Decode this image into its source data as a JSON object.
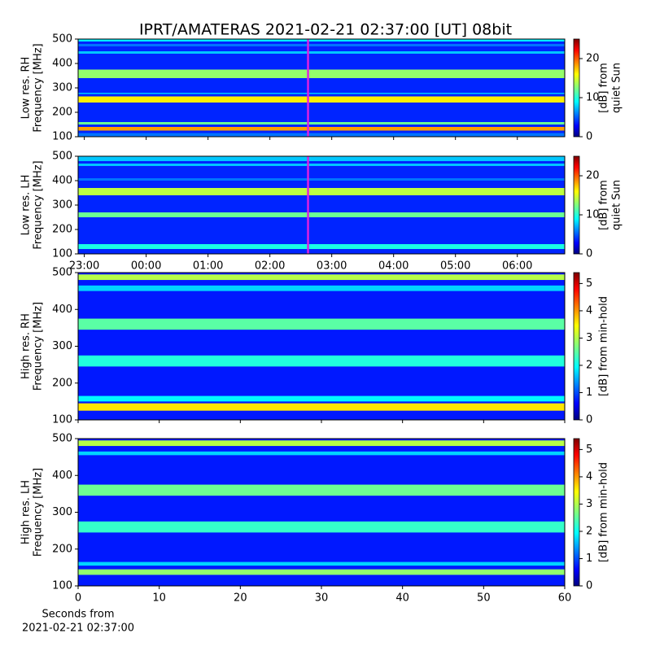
{
  "title": "IPRT/AMATERAS 2021-02-21 02:37:00 [UT]   08bit",
  "chart_data": [
    {
      "type": "heatmap",
      "ylabel": [
        "Low res. RH",
        "Frequency [MHz]"
      ],
      "xscale": "time",
      "xlim": [
        "22:54",
        "06:46"
      ],
      "xticks": [
        "23:00",
        "00:00",
        "01:00",
        "02:00",
        "03:00",
        "04:00",
        "05:00",
        "06:00"
      ],
      "show_xticklabels": false,
      "ylim": [
        100,
        500
      ],
      "yticks": [
        100,
        200,
        300,
        400,
        500
      ],
      "colormap": "jet",
      "clim": [
        0,
        25
      ],
      "cticks": [
        0,
        10,
        20
      ],
      "clabel": [
        "[dB] from",
        "quiet Sun"
      ],
      "marker_time": "02:37",
      "marker_color": "#e020e0",
      "background": 4,
      "bands": [
        {
          "from": 100,
          "to": 115,
          "value": 6
        },
        {
          "from": 125,
          "to": 140,
          "value": 18
        },
        {
          "from": 150,
          "to": 160,
          "value": 12
        },
        {
          "from": 240,
          "to": 265,
          "value": 16
        },
        {
          "from": 275,
          "to": 280,
          "value": 8
        },
        {
          "from": 340,
          "to": 375,
          "value": 13
        },
        {
          "from": 440,
          "to": 450,
          "value": 8
        },
        {
          "from": 470,
          "to": 480,
          "value": 6
        },
        {
          "from": 490,
          "to": 500,
          "value": 9
        }
      ]
    },
    {
      "type": "heatmap",
      "ylabel": [
        "Low res. LH",
        "Frequency [MHz]"
      ],
      "xscale": "time",
      "xlim": [
        "22:54",
        "06:46"
      ],
      "xticks": [
        "23:00",
        "00:00",
        "01:00",
        "02:00",
        "03:00",
        "04:00",
        "05:00",
        "06:00"
      ],
      "show_xticklabels": true,
      "ylim": [
        100,
        500
      ],
      "yticks": [
        100,
        200,
        300,
        400,
        500
      ],
      "colormap": "jet",
      "clim": [
        0,
        25
      ],
      "cticks": [
        0,
        10,
        20
      ],
      "clabel": [
        "[dB] from",
        "quiet Sun"
      ],
      "marker_time": "02:37",
      "marker_color": "#e020e0",
      "background": 4,
      "bands": [
        {
          "from": 120,
          "to": 140,
          "value": 10
        },
        {
          "from": 250,
          "to": 270,
          "value": 12
        },
        {
          "from": 340,
          "to": 370,
          "value": 14
        },
        {
          "from": 400,
          "to": 410,
          "value": 6
        },
        {
          "from": 460,
          "to": 470,
          "value": 8
        },
        {
          "from": 480,
          "to": 500,
          "value": 8
        }
      ]
    },
    {
      "type": "heatmap",
      "ylabel": [
        "High res. RH",
        "Frequency [MHz]"
      ],
      "xscale": "linear",
      "xlim": [
        0,
        60
      ],
      "xticks": [
        0,
        10,
        20,
        30,
        40,
        50,
        60
      ],
      "show_xticklabels": false,
      "ylim": [
        100,
        500
      ],
      "yticks": [
        100,
        200,
        300,
        400,
        500
      ],
      "colormap": "jet",
      "clim": [
        0,
        5.4
      ],
      "cticks": [
        0,
        1,
        2,
        3,
        4,
        5
      ],
      "clabel": [
        "[dB] from min-hold"
      ],
      "background": 0.8,
      "bands": [
        {
          "from": 125,
          "to": 145,
          "value": 3.5
        },
        {
          "from": 150,
          "to": 165,
          "value": 2
        },
        {
          "from": 245,
          "to": 275,
          "value": 2.2
        },
        {
          "from": 345,
          "to": 375,
          "value": 2.5
        },
        {
          "from": 450,
          "to": 465,
          "value": 1.8
        },
        {
          "from": 480,
          "to": 495,
          "value": 3
        }
      ]
    },
    {
      "type": "heatmap",
      "ylabel": [
        "High res. LH",
        "Frequency [MHz]"
      ],
      "xscale": "linear",
      "xlim": [
        0,
        60
      ],
      "xticks": [
        0,
        10,
        20,
        30,
        40,
        50,
        60
      ],
      "show_xticklabels": true,
      "xlabel": [
        "Seconds from",
        "2021-02-21 02:37:00"
      ],
      "ylim": [
        100,
        500
      ],
      "yticks": [
        100,
        200,
        300,
        400,
        500
      ],
      "colormap": "jet",
      "clim": [
        0,
        5.4
      ],
      "cticks": [
        0,
        1,
        2,
        3,
        4,
        5
      ],
      "clabel": [
        "[dB] from min-hold"
      ],
      "background": 0.8,
      "bands": [
        {
          "from": 130,
          "to": 145,
          "value": 2.8
        },
        {
          "from": 155,
          "to": 165,
          "value": 1.8
        },
        {
          "from": 245,
          "to": 275,
          "value": 2.3
        },
        {
          "from": 345,
          "to": 375,
          "value": 2.6
        },
        {
          "from": 455,
          "to": 465,
          "value": 1.8
        },
        {
          "from": 480,
          "to": 495,
          "value": 3
        }
      ]
    }
  ]
}
